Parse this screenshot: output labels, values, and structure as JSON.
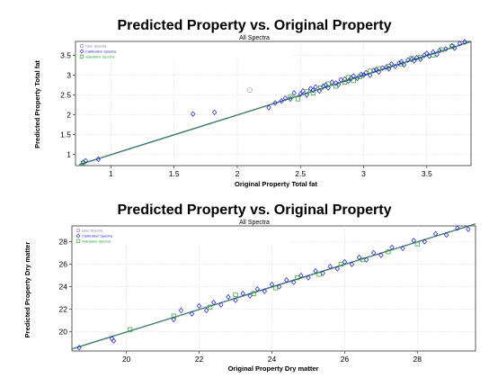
{
  "chart_data": [
    {
      "type": "scatter",
      "title": "Predicted Property vs. Original Property",
      "subtitle": "All Spectra",
      "xlabel": "Original Property Total fat",
      "ylabel": "Predicted Property Total fat",
      "xlim": [
        0.72,
        3.85
      ],
      "ylim": [
        0.72,
        3.85
      ],
      "xticks": [
        1,
        1.5,
        2,
        2.5,
        3,
        3.5
      ],
      "yticks": [
        1,
        1.5,
        2,
        2.5,
        3,
        3.5
      ],
      "grid": true,
      "legend_position": "top-left",
      "legend": [
        {
          "text": "User Spectra",
          "color": "#7777aa"
        },
        {
          "text": "Calibration Spectra",
          "color": "#1a1acc"
        },
        {
          "text": "Validation Spectra",
          "color": "#2a9a2a"
        }
      ],
      "colors": {
        "calibration": "#1a1acc",
        "validation": "#2a9a2a",
        "user": "#999999",
        "fit": "#33558a"
      },
      "fit_line": [
        [
          0.75,
          0.75
        ],
        [
          3.85,
          3.85
        ]
      ],
      "series": [
        {
          "name": "User Spectra",
          "marker": "circle",
          "points": [
            [
              2.1,
              2.62
            ]
          ]
        },
        {
          "name": "Calibration Spectra",
          "marker": "diamond",
          "points": [
            [
              0.78,
              0.8
            ],
            [
              0.8,
              0.84
            ],
            [
              0.9,
              0.88
            ],
            [
              1.65,
              2.02
            ],
            [
              1.82,
              2.06
            ],
            [
              2.25,
              2.18
            ],
            [
              2.3,
              2.3
            ],
            [
              2.35,
              2.35
            ],
            [
              2.38,
              2.42
            ],
            [
              2.42,
              2.4
            ],
            [
              2.45,
              2.55
            ],
            [
              2.5,
              2.52
            ],
            [
              2.52,
              2.6
            ],
            [
              2.55,
              2.5
            ],
            [
              2.58,
              2.66
            ],
            [
              2.6,
              2.62
            ],
            [
              2.62,
              2.7
            ],
            [
              2.65,
              2.6
            ],
            [
              2.68,
              2.72
            ],
            [
              2.7,
              2.75
            ],
            [
              2.72,
              2.68
            ],
            [
              2.75,
              2.82
            ],
            [
              2.78,
              2.8
            ],
            [
              2.8,
              2.76
            ],
            [
              2.82,
              2.88
            ],
            [
              2.85,
              2.9
            ],
            [
              2.88,
              2.85
            ],
            [
              2.9,
              2.92
            ],
            [
              2.92,
              2.98
            ],
            [
              2.95,
              2.92
            ],
            [
              2.98,
              3.02
            ],
            [
              3.0,
              3.0
            ],
            [
              3.02,
              3.06
            ],
            [
              3.05,
              3.0
            ],
            [
              3.08,
              3.12
            ],
            [
              3.1,
              3.14
            ],
            [
              3.12,
              3.08
            ],
            [
              3.15,
              3.18
            ],
            [
              3.18,
              3.2
            ],
            [
              3.2,
              3.16
            ],
            [
              3.22,
              3.28
            ],
            [
              3.25,
              3.22
            ],
            [
              3.28,
              3.3
            ],
            [
              3.3,
              3.34
            ],
            [
              3.32,
              3.26
            ],
            [
              3.35,
              3.38
            ],
            [
              3.38,
              3.4
            ],
            [
              3.4,
              3.36
            ],
            [
              3.42,
              3.44
            ],
            [
              3.45,
              3.4
            ],
            [
              3.48,
              3.5
            ],
            [
              3.5,
              3.55
            ],
            [
              3.52,
              3.48
            ],
            [
              3.55,
              3.58
            ],
            [
              3.58,
              3.52
            ],
            [
              3.6,
              3.62
            ],
            [
              3.65,
              3.66
            ],
            [
              3.7,
              3.74
            ],
            [
              3.72,
              3.68
            ],
            [
              3.76,
              3.8
            ],
            [
              3.8,
              3.84
            ]
          ]
        },
        {
          "name": "Validation Spectra",
          "marker": "square",
          "points": [
            [
              0.78,
              0.78
            ],
            [
              2.42,
              2.45
            ],
            [
              2.48,
              2.4
            ],
            [
              2.55,
              2.58
            ],
            [
              2.6,
              2.55
            ],
            [
              2.66,
              2.68
            ],
            [
              2.72,
              2.78
            ],
            [
              2.78,
              2.72
            ],
            [
              2.85,
              2.82
            ],
            [
              2.88,
              2.94
            ],
            [
              2.92,
              2.86
            ],
            [
              2.97,
              2.96
            ],
            [
              3.05,
              3.1
            ],
            [
              3.12,
              3.16
            ],
            [
              3.2,
              3.22
            ],
            [
              3.3,
              3.28
            ],
            [
              3.38,
              3.42
            ],
            [
              3.45,
              3.45
            ],
            [
              3.55,
              3.5
            ],
            [
              3.62,
              3.64
            ],
            [
              3.7,
              3.72
            ]
          ]
        }
      ]
    },
    {
      "type": "scatter",
      "title": "Predicted Property vs. Original Property",
      "subtitle": "All Spectra",
      "xlabel": "Original Property Dry matter",
      "ylabel": "Predicted Property Dry matter",
      "xlim": [
        18.5,
        29.6
      ],
      "ylim": [
        18.3,
        29.4
      ],
      "xticks": [
        20,
        22,
        24,
        26,
        28
      ],
      "yticks": [
        20,
        22,
        24,
        26,
        28
      ],
      "grid": true,
      "legend_position": "top-left",
      "legend": [
        {
          "text": "User Spectra",
          "color": "#7777aa"
        },
        {
          "text": "Calibration Spectra",
          "color": "#1a1acc"
        },
        {
          "text": "Validation Spectra",
          "color": "#2a9a2a"
        }
      ],
      "colors": {
        "calibration": "#1a1acc",
        "validation": "#2a9a2a",
        "user": "#999999",
        "fit": "#33558a"
      },
      "fit_line": [
        [
          18.5,
          18.5
        ],
        [
          29.6,
          29.6
        ]
      ],
      "series": [
        {
          "name": "Calibration Spectra",
          "marker": "diamond",
          "points": [
            [
              18.7,
              18.6
            ],
            [
              19.6,
              19.4
            ],
            [
              19.65,
              19.2
            ],
            [
              21.3,
              21.1
            ],
            [
              21.5,
              21.9
            ],
            [
              21.8,
              21.6
            ],
            [
              22.0,
              22.3
            ],
            [
              22.2,
              21.9
            ],
            [
              22.4,
              22.6
            ],
            [
              22.6,
              22.4
            ],
            [
              22.8,
              23.1
            ],
            [
              23.0,
              22.8
            ],
            [
              23.2,
              23.4
            ],
            [
              23.4,
              23.2
            ],
            [
              23.6,
              23.8
            ],
            [
              23.8,
              23.6
            ],
            [
              24.0,
              24.2
            ],
            [
              24.2,
              24.0
            ],
            [
              24.4,
              24.6
            ],
            [
              24.6,
              24.4
            ],
            [
              24.8,
              25.0
            ],
            [
              25.0,
              24.8
            ],
            [
              25.2,
              25.4
            ],
            [
              25.4,
              25.2
            ],
            [
              25.6,
              25.8
            ],
            [
              25.8,
              25.6
            ],
            [
              26.0,
              26.2
            ],
            [
              26.2,
              26.0
            ],
            [
              26.4,
              26.6
            ],
            [
              26.6,
              26.4
            ],
            [
              26.8,
              27.0
            ],
            [
              27.0,
              26.8
            ],
            [
              27.3,
              27.5
            ],
            [
              27.6,
              27.4
            ],
            [
              27.9,
              28.1
            ],
            [
              28.2,
              28.0
            ],
            [
              28.5,
              28.7
            ],
            [
              28.8,
              28.6
            ],
            [
              29.1,
              29.2
            ],
            [
              29.4,
              29.1
            ]
          ]
        },
        {
          "name": "Validation Spectra",
          "marker": "square",
          "points": [
            [
              20.1,
              20.2
            ],
            [
              21.3,
              21.4
            ],
            [
              22.3,
              22.2
            ],
            [
              23.0,
              23.3
            ],
            [
              23.5,
              23.4
            ],
            [
              24.1,
              23.9
            ],
            [
              24.7,
              24.8
            ],
            [
              25.3,
              25.1
            ],
            [
              25.9,
              26.0
            ],
            [
              26.5,
              26.4
            ],
            [
              27.2,
              27.1
            ],
            [
              28.0,
              27.8
            ]
          ]
        }
      ]
    }
  ]
}
